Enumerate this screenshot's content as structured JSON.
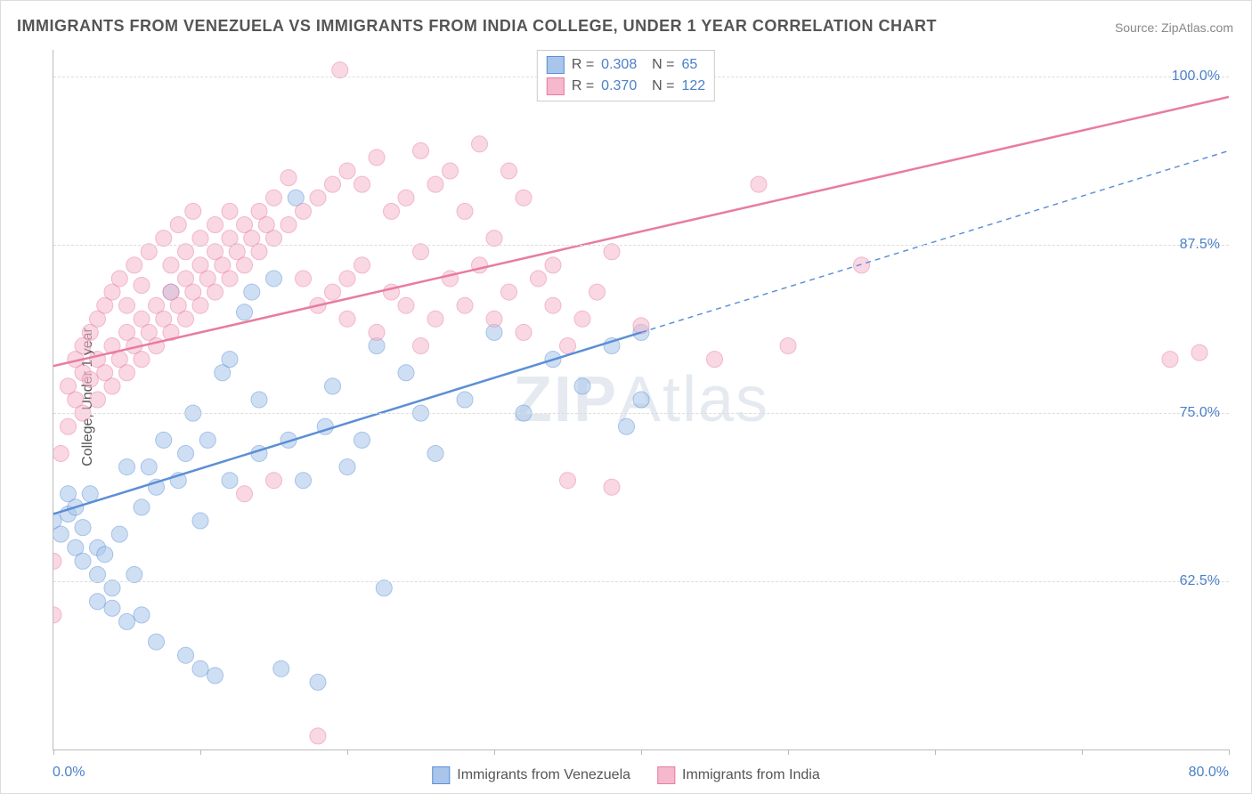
{
  "title": "IMMIGRANTS FROM VENEZUELA VS IMMIGRANTS FROM INDIA COLLEGE, UNDER 1 YEAR CORRELATION CHART",
  "source": "Source: ZipAtlas.com",
  "watermark": "ZIPAtlas",
  "y_axis_title": "College, Under 1 year",
  "chart": {
    "type": "scatter-with-regression",
    "background_color": "#ffffff",
    "grid_color": "#dddddd",
    "axis_color": "#bbbbbb",
    "text_color": "#555555",
    "value_color": "#4a7fc8",
    "xlim": [
      0,
      80
    ],
    "ylim": [
      50,
      102
    ],
    "x_labels": {
      "min": "0.0%",
      "max": "80.0%"
    },
    "y_ticks": [
      62.5,
      75.0,
      87.5,
      100.0
    ],
    "y_tick_labels": [
      "62.5%",
      "75.0%",
      "87.5%",
      "100.0%"
    ],
    "x_ticks_pos": [
      0,
      10,
      20,
      30,
      40,
      50,
      60,
      70,
      80
    ],
    "marker_radius": 9,
    "marker_opacity": 0.55,
    "line_width": 2.5
  },
  "series": [
    {
      "label": "Immigrants from Venezuela",
      "color": "#5b8fd6",
      "fill": "#a9c6ea",
      "R": "0.308",
      "N": "65",
      "regression": {
        "x1": 0,
        "y1": 67.5,
        "x2": 40,
        "y2": 81.0,
        "dash_x2": 80,
        "dash_y2": 94.5
      },
      "points": [
        [
          0,
          67
        ],
        [
          0.5,
          66
        ],
        [
          1,
          67.5
        ],
        [
          1,
          69
        ],
        [
          1.5,
          65
        ],
        [
          1.5,
          68
        ],
        [
          2,
          66.5
        ],
        [
          2,
          64
        ],
        [
          2.5,
          69
        ],
        [
          3,
          65
        ],
        [
          3,
          63
        ],
        [
          3,
          61
        ],
        [
          3.5,
          64.5
        ],
        [
          4,
          60.5
        ],
        [
          4,
          62
        ],
        [
          4.5,
          66
        ],
        [
          5,
          59.5
        ],
        [
          5,
          71
        ],
        [
          5.5,
          63
        ],
        [
          6,
          60
        ],
        [
          6,
          68
        ],
        [
          6.5,
          71
        ],
        [
          7,
          69.5
        ],
        [
          7,
          58
        ],
        [
          7.5,
          73
        ],
        [
          8,
          84
        ],
        [
          8.5,
          70
        ],
        [
          9,
          57
        ],
        [
          9,
          72
        ],
        [
          9.5,
          75
        ],
        [
          10,
          67
        ],
        [
          10,
          56
        ],
        [
          10.5,
          73
        ],
        [
          11,
          55.5
        ],
        [
          11.5,
          78
        ],
        [
          12,
          79
        ],
        [
          12,
          70
        ],
        [
          13,
          82.5
        ],
        [
          13.5,
          84
        ],
        [
          14,
          76
        ],
        [
          14,
          72
        ],
        [
          15,
          85
        ],
        [
          15.5,
          56
        ],
        [
          16,
          73
        ],
        [
          16.5,
          91
        ],
        [
          17,
          70
        ],
        [
          18,
          55
        ],
        [
          18.5,
          74
        ],
        [
          19,
          77
        ],
        [
          20,
          71
        ],
        [
          21,
          73
        ],
        [
          22,
          80
        ],
        [
          22.5,
          62
        ],
        [
          24,
          78
        ],
        [
          25,
          75
        ],
        [
          26,
          72
        ],
        [
          28,
          76
        ],
        [
          30,
          81
        ],
        [
          32,
          75
        ],
        [
          34,
          79
        ],
        [
          36,
          77
        ],
        [
          38,
          80
        ],
        [
          39,
          74
        ],
        [
          40,
          81
        ],
        [
          40,
          76
        ]
      ]
    },
    {
      "label": "Immigrants from India",
      "color": "#e87ca0",
      "fill": "#f5b8cd",
      "R": "0.370",
      "N": "122",
      "regression": {
        "x1": 0,
        "y1": 78.5,
        "x2": 80,
        "y2": 98.5,
        "dash_x2": 80,
        "dash_y2": 98.5
      },
      "points": [
        [
          0,
          60
        ],
        [
          0,
          64
        ],
        [
          0.5,
          72
        ],
        [
          1,
          74
        ],
        [
          1,
          77
        ],
        [
          1.5,
          76
        ],
        [
          1.5,
          79
        ],
        [
          2,
          75
        ],
        [
          2,
          78
        ],
        [
          2,
          80
        ],
        [
          2.5,
          77.5
        ],
        [
          2.5,
          81
        ],
        [
          3,
          76
        ],
        [
          3,
          79
        ],
        [
          3,
          82
        ],
        [
          3.5,
          78
        ],
        [
          3.5,
          83
        ],
        [
          4,
          77
        ],
        [
          4,
          80
        ],
        [
          4,
          84
        ],
        [
          4.5,
          79
        ],
        [
          4.5,
          85
        ],
        [
          5,
          78
        ],
        [
          5,
          81
        ],
        [
          5,
          83
        ],
        [
          5.5,
          80
        ],
        [
          5.5,
          86
        ],
        [
          6,
          79
        ],
        [
          6,
          82
        ],
        [
          6,
          84.5
        ],
        [
          6.5,
          81
        ],
        [
          6.5,
          87
        ],
        [
          7,
          80
        ],
        [
          7,
          83
        ],
        [
          7.5,
          82
        ],
        [
          7.5,
          88
        ],
        [
          8,
          81
        ],
        [
          8,
          84
        ],
        [
          8,
          86
        ],
        [
          8.5,
          83
        ],
        [
          8.5,
          89
        ],
        [
          9,
          82
        ],
        [
          9,
          85
        ],
        [
          9,
          87
        ],
        [
          9.5,
          84
        ],
        [
          9.5,
          90
        ],
        [
          10,
          83
        ],
        [
          10,
          86
        ],
        [
          10,
          88
        ],
        [
          10.5,
          85
        ],
        [
          11,
          84
        ],
        [
          11,
          87
        ],
        [
          11,
          89
        ],
        [
          11.5,
          86
        ],
        [
          12,
          85
        ],
        [
          12,
          88
        ],
        [
          12,
          90
        ],
        [
          12.5,
          87
        ],
        [
          13,
          69
        ],
        [
          13,
          86
        ],
        [
          13,
          89
        ],
        [
          13.5,
          88
        ],
        [
          14,
          87
        ],
        [
          14,
          90
        ],
        [
          14.5,
          89
        ],
        [
          15,
          70
        ],
        [
          15,
          88
        ],
        [
          15,
          91
        ],
        [
          16,
          89
        ],
        [
          16,
          92.5
        ],
        [
          17,
          85
        ],
        [
          17,
          90
        ],
        [
          18,
          51
        ],
        [
          18,
          83
        ],
        [
          18,
          91
        ],
        [
          19,
          84
        ],
        [
          19,
          92
        ],
        [
          19.5,
          100.5
        ],
        [
          20,
          82
        ],
        [
          20,
          85
        ],
        [
          20,
          93
        ],
        [
          21,
          86
        ],
        [
          21,
          92
        ],
        [
          22,
          81
        ],
        [
          22,
          94
        ],
        [
          23,
          84
        ],
        [
          23,
          90
        ],
        [
          24,
          83
        ],
        [
          24,
          91
        ],
        [
          25,
          80
        ],
        [
          25,
          87
        ],
        [
          25,
          94.5
        ],
        [
          26,
          82
        ],
        [
          26,
          92
        ],
        [
          27,
          85
        ],
        [
          27,
          93
        ],
        [
          28,
          83
        ],
        [
          28,
          90
        ],
        [
          29,
          86
        ],
        [
          29,
          95
        ],
        [
          30,
          82
        ],
        [
          30,
          88
        ],
        [
          31,
          84
        ],
        [
          31,
          93
        ],
        [
          32,
          81
        ],
        [
          32,
          91
        ],
        [
          33,
          85
        ],
        [
          34,
          83
        ],
        [
          34,
          86
        ],
        [
          35,
          80
        ],
        [
          35,
          70
        ],
        [
          36,
          82
        ],
        [
          37,
          84
        ],
        [
          38,
          69.5
        ],
        [
          38,
          87
        ],
        [
          40,
          81.5
        ],
        [
          45,
          79
        ],
        [
          48,
          92
        ],
        [
          50,
          80
        ],
        [
          55,
          86
        ],
        [
          76,
          79
        ],
        [
          78,
          79.5
        ]
      ]
    }
  ],
  "bottom_legend": [
    "Immigrants from Venezuela",
    "Immigrants from India"
  ]
}
